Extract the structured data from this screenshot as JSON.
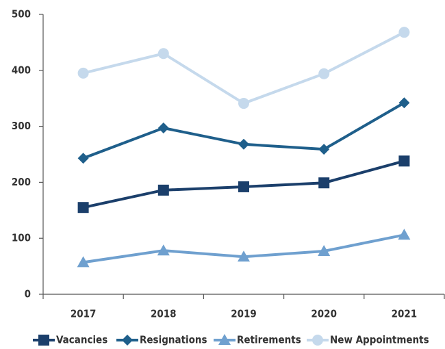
{
  "chart_data": {
    "type": "line",
    "categories": [
      "2017",
      "2018",
      "2019",
      "2020",
      "2021"
    ],
    "series": [
      {
        "name": "Vacancies",
        "color": "#1b3f6b",
        "marker": "square",
        "values": [
          155,
          186,
          192,
          199,
          238
        ]
      },
      {
        "name": "Resignations",
        "color": "#1f5f8b",
        "marker": "diamond",
        "values": [
          243,
          297,
          268,
          259,
          342
        ]
      },
      {
        "name": "Retirements",
        "color": "#6fa0cf",
        "marker": "triangle",
        "values": [
          57,
          78,
          67,
          77,
          106
        ]
      },
      {
        "name": "New Appointments",
        "color": "#c5d9ec",
        "marker": "circle",
        "values": [
          395,
          430,
          341,
          394,
          468
        ]
      }
    ],
    "ylim": [
      0,
      500
    ],
    "yticks": [
      0,
      100,
      200,
      300,
      400,
      500
    ],
    "grid": false,
    "legend": "bottom"
  }
}
